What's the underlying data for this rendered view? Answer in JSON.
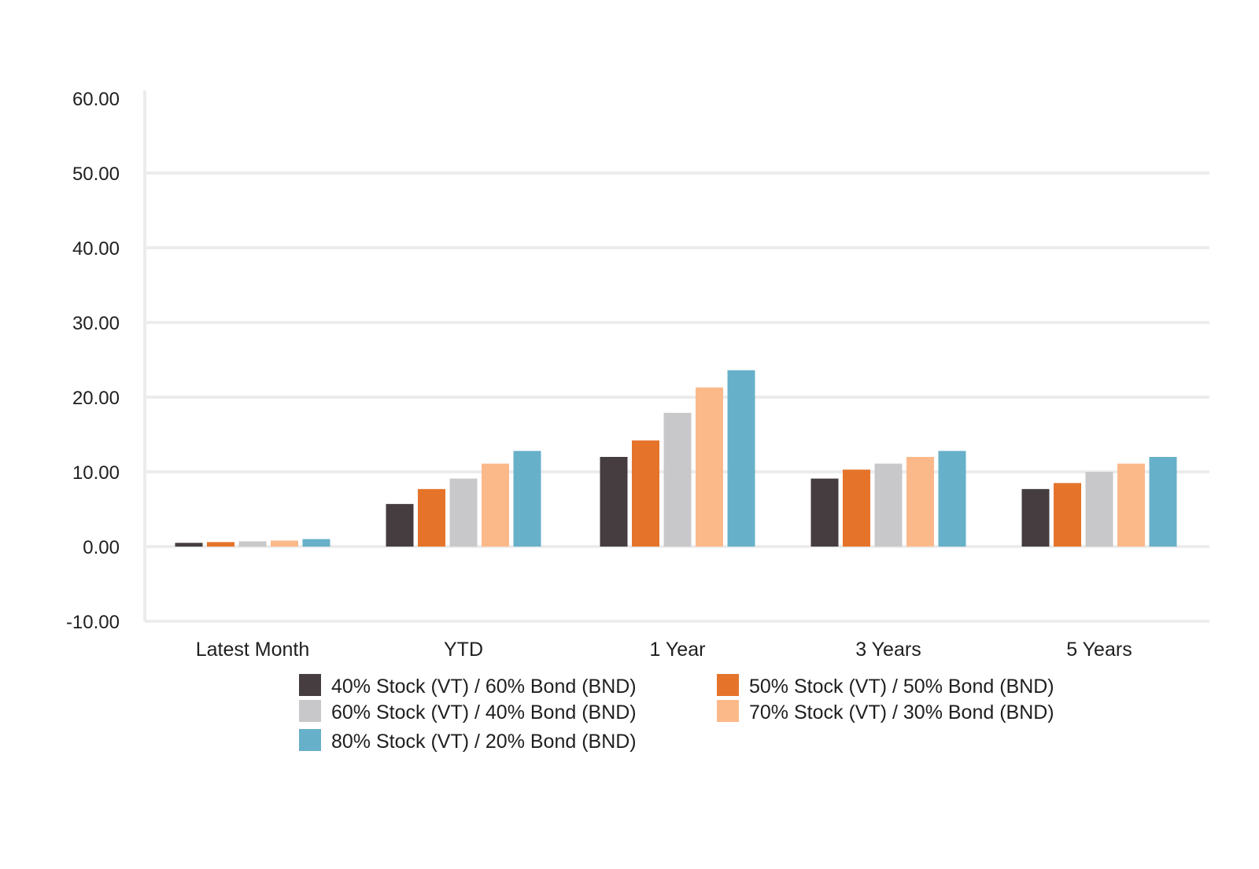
{
  "chart_data": {
    "type": "bar",
    "title": "",
    "xlabel": "",
    "ylabel": "",
    "ylim": [
      -10,
      60
    ],
    "y_ticks": [
      -10,
      0,
      10,
      20,
      30,
      40,
      50,
      60
    ],
    "y_tick_labels": [
      "-10.00",
      "0.00",
      "10.00",
      "20.00",
      "30.00",
      "40.00",
      "50.00",
      "60.00"
    ],
    "grid": true,
    "legend_position": "bottom",
    "categories": [
      "Latest Month",
      "YTD",
      "1 Year",
      "3 Years",
      "5 Years"
    ],
    "series": [
      {
        "name": "40% Stock (VT) / 60% Bond (BND)",
        "color": "#453d3f",
        "values": [
          0.5,
          5.7,
          12.0,
          9.1,
          7.7
        ]
      },
      {
        "name": "50% Stock (VT) / 50% Bond (BND)",
        "color": "#e5742a",
        "values": [
          0.6,
          7.7,
          14.2,
          10.3,
          8.5
        ]
      },
      {
        "name": "60% Stock (VT) / 40% Bond (BND)",
        "color": "#c8c8ca",
        "values": [
          0.7,
          9.1,
          17.9,
          11.1,
          10.0
        ]
      },
      {
        "name": "70% Stock (VT) / 30% Bond (BND)",
        "color": "#fbb98a",
        "values": [
          0.8,
          11.1,
          21.3,
          12.0,
          11.1
        ]
      },
      {
        "name": "80% Stock (VT) / 20% Bond (BND)",
        "color": "#67b0c9",
        "values": [
          1.0,
          12.8,
          23.6,
          12.8,
          12.0
        ]
      }
    ]
  }
}
